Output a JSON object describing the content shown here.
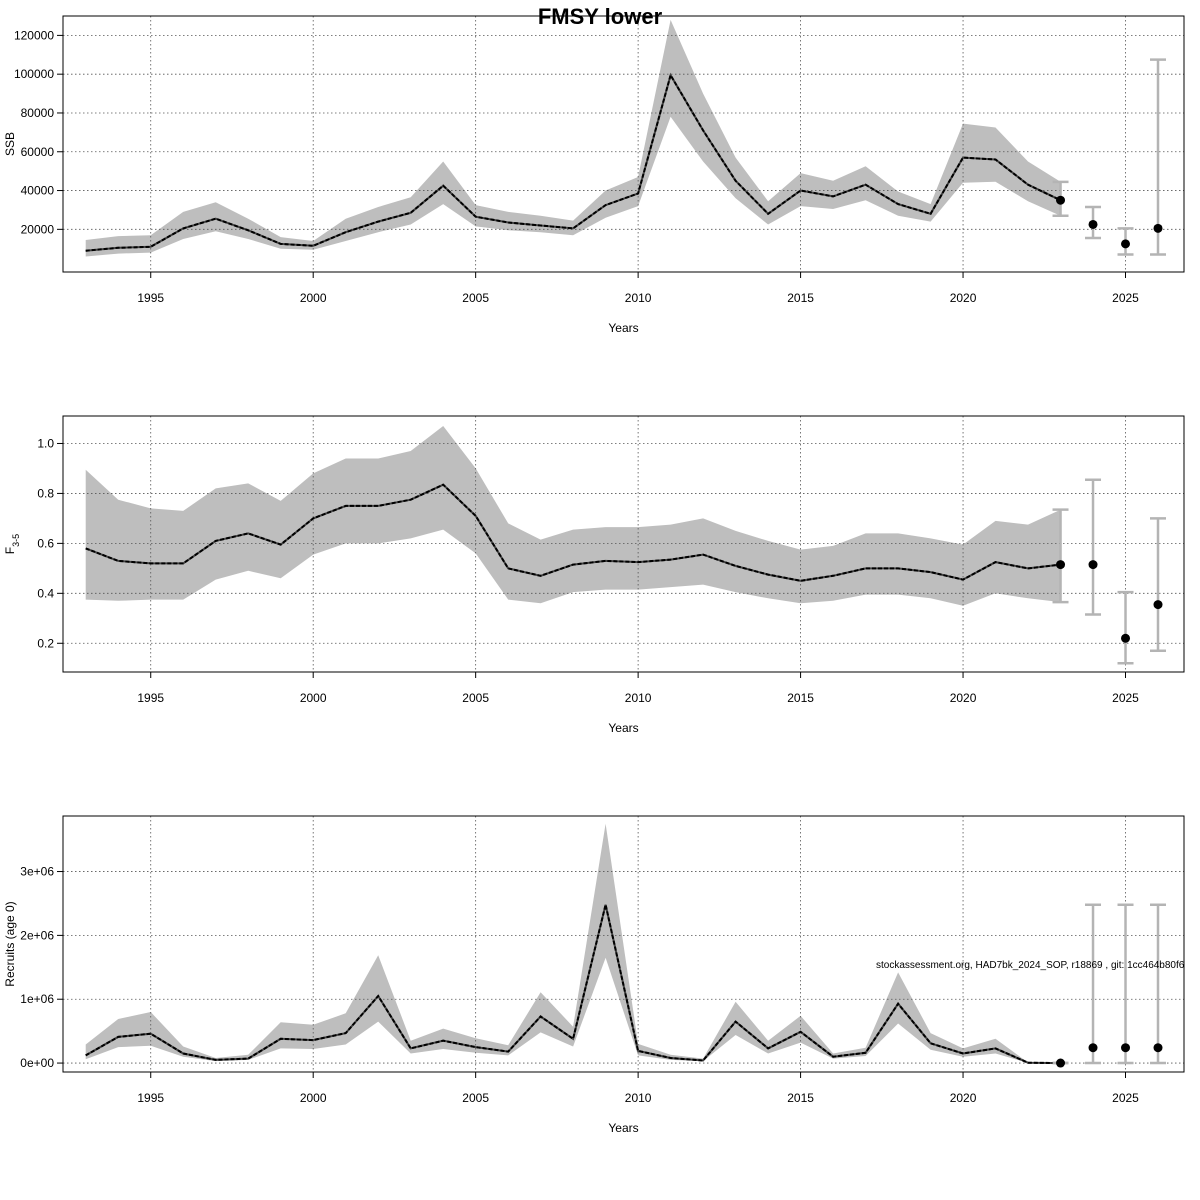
{
  "title": "FMSY lower",
  "footnote": "stockassessment.org, HAD7bk_2024_SOP, r18869 , git: 1cc464b80f6",
  "colors": {
    "band": "#bebebe",
    "line": "#000000",
    "grid": "#555555",
    "errorbar": "#b4b4b4"
  },
  "chart_data": [
    {
      "type": "line",
      "name": "ssb",
      "xlabel": "Years",
      "ylabel": "SSB",
      "xlim": [
        1992.3,
        2026.8
      ],
      "ylim": [
        -2000,
        130000
      ],
      "xticks": [
        1995,
        2000,
        2005,
        2010,
        2015,
        2020,
        2025
      ],
      "yticks": [
        20000,
        40000,
        60000,
        80000,
        100000,
        120000
      ],
      "ytick_labels": [
        "20000",
        "40000",
        "60000",
        "80000",
        "100000",
        "120000"
      ],
      "grid": true,
      "years": [
        1993,
        1994,
        1995,
        1996,
        1997,
        1998,
        1999,
        2000,
        2001,
        2002,
        2003,
        2004,
        2005,
        2006,
        2007,
        2008,
        2009,
        2010,
        2011,
        2012,
        2013,
        2014,
        2015,
        2016,
        2017,
        2018,
        2019,
        2020,
        2021,
        2022,
        2023
      ],
      "estimate": [
        9000,
        10500,
        11000,
        20500,
        25500,
        19500,
        12500,
        11500,
        18500,
        24000,
        28500,
        42500,
        26500,
        23500,
        22000,
        20500,
        32500,
        38500,
        99500,
        71000,
        45000,
        28000,
        40000,
        37000,
        43000,
        33000,
        28000,
        57000,
        56000,
        43000,
        35000
      ],
      "lower": [
        6000,
        7500,
        8000,
        15000,
        19000,
        15000,
        10000,
        9500,
        14000,
        18500,
        22500,
        33000,
        21500,
        19500,
        18500,
        17000,
        26000,
        32000,
        78000,
        55000,
        36000,
        22500,
        32000,
        30500,
        35000,
        27000,
        24000,
        44000,
        44500,
        34500,
        27000
      ],
      "upper": [
        14500,
        16500,
        17000,
        29000,
        34000,
        25500,
        16000,
        14000,
        25500,
        31500,
        36500,
        55000,
        32500,
        29000,
        27000,
        24500,
        40000,
        47000,
        128000,
        90000,
        57000,
        34500,
        49000,
        45000,
        52500,
        39500,
        33000,
        74500,
        72500,
        55000,
        44500
      ],
      "forecast": [
        {
          "year": 2023,
          "median": 35000,
          "low": 27000,
          "high": 44500
        },
        {
          "year": 2024,
          "median": 22500,
          "low": 15500,
          "high": 31500
        },
        {
          "year": 2025,
          "median": 12500,
          "low": 7000,
          "high": 20500
        },
        {
          "year": 2026,
          "median": 20500,
          "low": 7000,
          "high": 107500
        }
      ]
    },
    {
      "type": "line",
      "name": "fbar",
      "xlabel": "Years",
      "ylabel": "F",
      "ylabel_sub": "3-5",
      "xlim": [
        1992.3,
        2026.8
      ],
      "ylim": [
        0.085,
        1.11
      ],
      "xticks": [
        1995,
        2000,
        2005,
        2010,
        2015,
        2020,
        2025
      ],
      "yticks": [
        0.2,
        0.4,
        0.6,
        0.8,
        1.0
      ],
      "ytick_labels": [
        "0.2",
        "0.4",
        "0.6",
        "0.8",
        "1.0"
      ],
      "grid": true,
      "years": [
        1993,
        1994,
        1995,
        1996,
        1997,
        1998,
        1999,
        2000,
        2001,
        2002,
        2003,
        2004,
        2005,
        2006,
        2007,
        2008,
        2009,
        2010,
        2011,
        2012,
        2013,
        2014,
        2015,
        2016,
        2017,
        2018,
        2019,
        2020,
        2021,
        2022,
        2023
      ],
      "estimate": [
        0.58,
        0.53,
        0.52,
        0.52,
        0.61,
        0.64,
        0.595,
        0.7,
        0.75,
        0.75,
        0.775,
        0.835,
        0.71,
        0.5,
        0.47,
        0.515,
        0.53,
        0.525,
        0.535,
        0.555,
        0.51,
        0.475,
        0.45,
        0.47,
        0.5,
        0.5,
        0.485,
        0.455,
        0.525,
        0.5,
        0.515
      ],
      "lower": [
        0.375,
        0.37,
        0.375,
        0.375,
        0.455,
        0.49,
        0.46,
        0.555,
        0.6,
        0.6,
        0.62,
        0.655,
        0.56,
        0.375,
        0.36,
        0.405,
        0.415,
        0.415,
        0.425,
        0.435,
        0.405,
        0.38,
        0.36,
        0.37,
        0.395,
        0.395,
        0.38,
        0.35,
        0.4,
        0.38,
        0.365
      ],
      "upper": [
        0.895,
        0.775,
        0.74,
        0.73,
        0.82,
        0.84,
        0.77,
        0.88,
        0.94,
        0.94,
        0.97,
        1.07,
        0.9,
        0.68,
        0.615,
        0.655,
        0.665,
        0.665,
        0.675,
        0.7,
        0.65,
        0.61,
        0.575,
        0.59,
        0.64,
        0.64,
        0.62,
        0.595,
        0.69,
        0.675,
        0.735
      ],
      "forecast": [
        {
          "year": 2023,
          "median": 0.515,
          "low": 0.365,
          "high": 0.735
        },
        {
          "year": 2024,
          "median": 0.515,
          "low": 0.315,
          "high": 0.855
        },
        {
          "year": 2025,
          "median": 0.22,
          "low": 0.12,
          "high": 0.405
        },
        {
          "year": 2026,
          "median": 0.355,
          "low": 0.17,
          "high": 0.7
        }
      ]
    },
    {
      "type": "line",
      "name": "recruits",
      "xlabel": "Years",
      "ylabel": "Recruits (age 0)",
      "xlim": [
        1992.3,
        2026.8
      ],
      "ylim": [
        -140000,
        3870000
      ],
      "xticks": [
        1995,
        2000,
        2005,
        2010,
        2015,
        2020,
        2025
      ],
      "yticks": [
        0,
        1000000,
        2000000,
        3000000
      ],
      "ytick_labels": [
        "0e+00",
        "1e+06",
        "2e+06",
        "3e+06"
      ],
      "grid": true,
      "years": [
        1993,
        1994,
        1995,
        1996,
        1997,
        1998,
        1999,
        2000,
        2001,
        2002,
        2003,
        2004,
        2005,
        2006,
        2007,
        2008,
        2009,
        2010,
        2011,
        2012,
        2013,
        2014,
        2015,
        2016,
        2017,
        2018,
        2019,
        2020,
        2021,
        2022,
        2023
      ],
      "estimate": [
        120000,
        410000,
        460000,
        150000,
        50000,
        70000,
        380000,
        360000,
        470000,
        1050000,
        230000,
        350000,
        250000,
        180000,
        730000,
        380000,
        2480000,
        190000,
        80000,
        40000,
        650000,
        230000,
        490000,
        100000,
        160000,
        930000,
        310000,
        150000,
        230000,
        5000,
        0
      ],
      "lower": [
        60000,
        250000,
        270000,
        100000,
        30000,
        50000,
        230000,
        220000,
        290000,
        650000,
        150000,
        220000,
        160000,
        120000,
        480000,
        260000,
        1650000,
        120000,
        50000,
        30000,
        440000,
        150000,
        320000,
        70000,
        110000,
        620000,
        210000,
        100000,
        150000,
        3000,
        0
      ],
      "upper": [
        290000,
        690000,
        800000,
        260000,
        80000,
        130000,
        640000,
        600000,
        780000,
        1690000,
        350000,
        540000,
        390000,
        280000,
        1110000,
        570000,
        3750000,
        300000,
        130000,
        70000,
        960000,
        350000,
        740000,
        150000,
        240000,
        1420000,
        470000,
        230000,
        380000,
        8000,
        0
      ],
      "forecast": [
        {
          "year": 2023,
          "median": 0,
          "low": 0,
          "high": 0
        },
        {
          "year": 2024,
          "median": 240000,
          "low": 0,
          "high": 2480000
        },
        {
          "year": 2025,
          "median": 240000,
          "low": 0,
          "high": 2480000
        },
        {
          "year": 2026,
          "median": 240000,
          "low": 0,
          "high": 2480000
        }
      ]
    }
  ]
}
